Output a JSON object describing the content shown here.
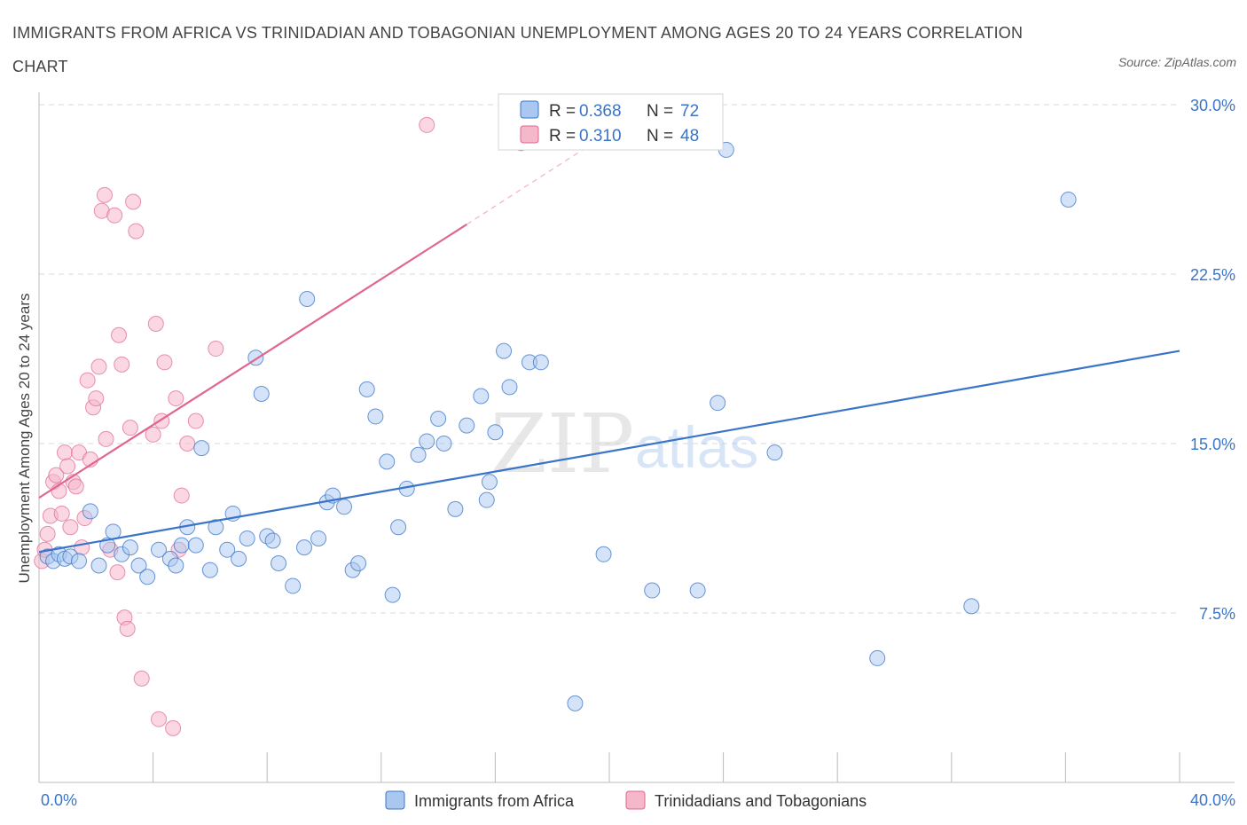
{
  "title": "IMMIGRANTS FROM AFRICA VS TRINIDADIAN AND TOBAGONIAN UNEMPLOYMENT AMONG AGES 20 TO 24 YEARS CORRELATION CHART",
  "source": "Source: ZipAtlas.com",
  "watermark": {
    "zip": "ZIP",
    "atlas": "atlas"
  },
  "colors": {
    "blue": "#3a74c8",
    "blue_fill": "#a9c7ef",
    "pink": "#e0658f",
    "pink_fill": "#f5b7ca",
    "grid": "#d9d9d9",
    "axis": "#bbbbbb"
  },
  "stats": [
    {
      "r_label": "R = ",
      "r_value": "0.368",
      "n_label": "N = ",
      "n_value": "72"
    },
    {
      "r_label": "R = ",
      "r_value": "0.310",
      "n_label": "N = ",
      "n_value": "48"
    }
  ],
  "chart_data": {
    "type": "scatter",
    "title": "IMMIGRANTS FROM AFRICA VS TRINIDADIAN AND TOBAGONIAN UNEMPLOYMENT AMONG AGES 20 TO 24 YEARS CORRELATION CHART",
    "xlabel": "",
    "ylabel": "Unemployment Among Ages 20 to 24 years",
    "xlim": [
      0,
      40
    ],
    "ylim": [
      0,
      30
    ],
    "x_tick_labels": [
      "0.0%",
      "40.0%"
    ],
    "y_ticks": [
      7.5,
      15.0,
      22.5,
      30.0
    ],
    "y_tick_labels": [
      "7.5%",
      "15.0%",
      "22.5%",
      "30.0%"
    ],
    "grid": true,
    "legend_position": "bottom-center",
    "series": [
      {
        "name": "Immigrants from Africa",
        "color": "#3a74c8",
        "r": 0.368,
        "n": 72,
        "trend": {
          "x": [
            0,
            40
          ],
          "y": [
            10.2,
            19.1
          ]
        },
        "points": [
          [
            0.3,
            10.0
          ],
          [
            0.5,
            9.8
          ],
          [
            0.7,
            10.1
          ],
          [
            0.9,
            9.9
          ],
          [
            1.1,
            10.0
          ],
          [
            1.4,
            9.8
          ],
          [
            1.8,
            12.0
          ],
          [
            2.1,
            9.6
          ],
          [
            2.4,
            10.5
          ],
          [
            2.6,
            11.1
          ],
          [
            2.9,
            10.1
          ],
          [
            3.2,
            10.4
          ],
          [
            3.5,
            9.6
          ],
          [
            3.8,
            9.1
          ],
          [
            4.2,
            10.3
          ],
          [
            4.6,
            9.9
          ],
          [
            4.8,
            9.6
          ],
          [
            5.0,
            10.5
          ],
          [
            5.2,
            11.3
          ],
          [
            5.5,
            10.5
          ],
          [
            5.7,
            14.8
          ],
          [
            6.0,
            9.4
          ],
          [
            6.2,
            11.3
          ],
          [
            6.6,
            10.3
          ],
          [
            6.8,
            11.9
          ],
          [
            7.0,
            9.9
          ],
          [
            7.3,
            10.8
          ],
          [
            7.6,
            18.8
          ],
          [
            7.8,
            17.2
          ],
          [
            8.0,
            10.9
          ],
          [
            8.2,
            10.7
          ],
          [
            8.4,
            9.7
          ],
          [
            8.9,
            8.7
          ],
          [
            9.3,
            10.4
          ],
          [
            9.4,
            21.4
          ],
          [
            9.8,
            10.8
          ],
          [
            10.1,
            12.4
          ],
          [
            10.3,
            12.7
          ],
          [
            10.7,
            12.2
          ],
          [
            11.0,
            9.4
          ],
          [
            11.2,
            9.7
          ],
          [
            11.5,
            17.4
          ],
          [
            11.8,
            16.2
          ],
          [
            12.2,
            14.2
          ],
          [
            12.4,
            8.3
          ],
          [
            12.6,
            11.3
          ],
          [
            12.9,
            13.0
          ],
          [
            13.3,
            14.5
          ],
          [
            13.6,
            15.1
          ],
          [
            14.0,
            16.1
          ],
          [
            14.2,
            15.0
          ],
          [
            14.6,
            12.1
          ],
          [
            15.0,
            15.8
          ],
          [
            15.5,
            17.1
          ],
          [
            15.7,
            12.5
          ],
          [
            15.8,
            13.3
          ],
          [
            16.0,
            15.5
          ],
          [
            16.3,
            19.1
          ],
          [
            16.5,
            17.5
          ],
          [
            16.9,
            28.3
          ],
          [
            17.2,
            18.6
          ],
          [
            17.6,
            18.6
          ],
          [
            18.8,
            3.5
          ],
          [
            19.8,
            10.1
          ],
          [
            21.5,
            8.5
          ],
          [
            23.1,
            8.5
          ],
          [
            23.8,
            16.8
          ],
          [
            24.1,
            28.0
          ],
          [
            25.8,
            14.6
          ],
          [
            29.4,
            5.5
          ],
          [
            32.7,
            7.8
          ],
          [
            36.1,
            25.8
          ]
        ]
      },
      {
        "name": "Trinidadians and Tobagonians",
        "color": "#e0658f",
        "r": 0.31,
        "n": 48,
        "trend": {
          "x": [
            0,
            15.0
          ],
          "y": [
            12.6,
            24.7
          ]
        },
        "trend_ext": {
          "x": [
            15.0,
            19.8
          ],
          "y": [
            24.7,
            28.6
          ]
        },
        "points": [
          [
            0.1,
            9.8
          ],
          [
            0.2,
            10.3
          ],
          [
            0.3,
            11.0
          ],
          [
            0.4,
            11.8
          ],
          [
            0.5,
            13.3
          ],
          [
            0.6,
            13.6
          ],
          [
            0.7,
            12.9
          ],
          [
            0.8,
            11.9
          ],
          [
            0.9,
            14.6
          ],
          [
            1.0,
            14.0
          ],
          [
            1.1,
            11.3
          ],
          [
            1.2,
            13.3
          ],
          [
            1.3,
            13.1
          ],
          [
            1.4,
            14.6
          ],
          [
            1.5,
            10.4
          ],
          [
            1.6,
            11.7
          ],
          [
            1.7,
            17.8
          ],
          [
            1.8,
            14.3
          ],
          [
            1.9,
            16.6
          ],
          [
            2.0,
            17.0
          ],
          [
            2.1,
            18.4
          ],
          [
            2.2,
            25.3
          ],
          [
            2.3,
            26.0
          ],
          [
            2.35,
            15.2
          ],
          [
            2.5,
            10.3
          ],
          [
            2.65,
            25.1
          ],
          [
            2.75,
            9.3
          ],
          [
            2.8,
            19.8
          ],
          [
            2.9,
            18.5
          ],
          [
            3.0,
            7.3
          ],
          [
            3.1,
            6.8
          ],
          [
            3.2,
            15.7
          ],
          [
            3.3,
            25.7
          ],
          [
            3.4,
            24.4
          ],
          [
            3.6,
            4.6
          ],
          [
            4.0,
            15.4
          ],
          [
            4.1,
            20.3
          ],
          [
            4.2,
            2.8
          ],
          [
            4.3,
            16.0
          ],
          [
            4.4,
            18.6
          ],
          [
            4.7,
            2.4
          ],
          [
            4.8,
            17.0
          ],
          [
            5.0,
            12.7
          ],
          [
            5.2,
            15.0
          ],
          [
            5.5,
            16.0
          ],
          [
            6.2,
            19.2
          ],
          [
            4.9,
            10.3
          ],
          [
            13.6,
            29.1
          ]
        ]
      }
    ]
  }
}
